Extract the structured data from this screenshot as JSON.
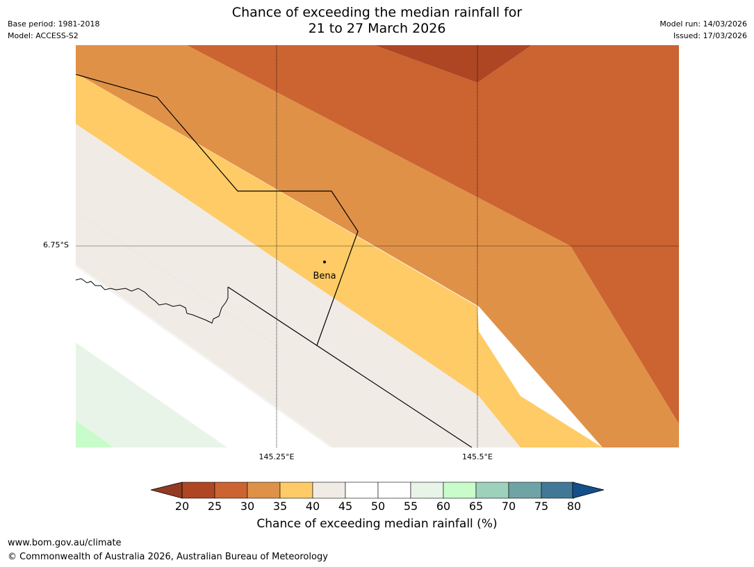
{
  "title": {
    "line1": "Chance of exceeding the median rainfall for",
    "line2": "21 to 27 March 2026"
  },
  "meta": {
    "base_period": "Base period: 1981-2018",
    "model": "Model: ACCESS-S2",
    "model_run": "Model run: 14/03/2026",
    "issued": "Issued: 17/03/2026"
  },
  "map": {
    "place": "Bena",
    "lat_labels": [
      "6.75°S"
    ],
    "lon_labels": [
      "145.25°E",
      "145.5°E"
    ],
    "colors": {
      "c20": "#ae4624",
      "c25": "#cb6431",
      "c30": "#e09148",
      "c35": "#fecb66",
      "c40": "#f0ebe4",
      "c45": "#ffffff",
      "c55": "#e8f4e7",
      "c60": "#c8fccb",
      "below": "#933b22",
      "above": "#134f8a"
    }
  },
  "colorbar": {
    "label": "Chance of exceeding median rainfall (%)",
    "ticks": [
      "20",
      "25",
      "30",
      "35",
      "40",
      "45",
      "50",
      "55",
      "60",
      "65",
      "70",
      "75",
      "80"
    ],
    "colors": [
      "#ae4624",
      "#cb6431",
      "#e09148",
      "#fecb66",
      "#f0ebe4",
      "#ffffff",
      "#ffffff",
      "#e8f4e7",
      "#c8fccb",
      "#9dd1bb",
      "#6fa4a6",
      "#417897"
    ],
    "under_color": "#933b22",
    "over_color": "#134f8a"
  },
  "footer": {
    "url": "www.bom.gov.au/climate",
    "copyright": "© Commonwealth of Australia 2026, Australian Bureau of Meteorology"
  }
}
